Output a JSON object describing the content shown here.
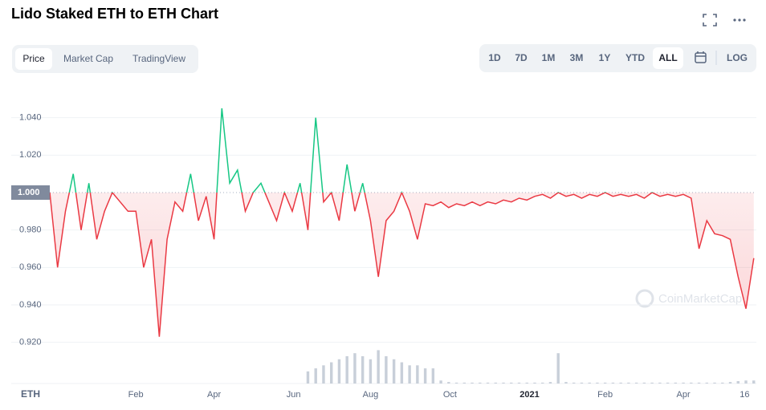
{
  "header": {
    "title": "Lido Staked ETH to ETH Chart"
  },
  "tabs": [
    "Price",
    "Market Cap",
    "TradingView"
  ],
  "active_tab": 0,
  "ranges": [
    "1D",
    "7D",
    "1M",
    "3M",
    "1Y",
    "YTD",
    "ALL"
  ],
  "active_range": 6,
  "log_button": "LOG",
  "watermark": "CoinMarketCap",
  "chart_data": {
    "type": "line",
    "axis_label": "ETH",
    "x": [
      0,
      6,
      12,
      18,
      24,
      30,
      36,
      42,
      48,
      54,
      60,
      66,
      72,
      78,
      84,
      90,
      96,
      102,
      108,
      114,
      120,
      126,
      132,
      138,
      144,
      150,
      156,
      162,
      168,
      174,
      180,
      186,
      192,
      198,
      204,
      210,
      216,
      222,
      228,
      234,
      240,
      246,
      252,
      258,
      264,
      270,
      276,
      282,
      288,
      294,
      300,
      306,
      312,
      318,
      324,
      330,
      336,
      342,
      348,
      354,
      360,
      366,
      372,
      378,
      384,
      390,
      396,
      402,
      408,
      414,
      420,
      426,
      432,
      438,
      444,
      450,
      456,
      462,
      468,
      474,
      480,
      486,
      492,
      498,
      504,
      510,
      516,
      522,
      528,
      534,
      540
    ],
    "xlim": [
      0,
      542
    ],
    "xticks": [
      {
        "value": 66,
        "label": "Feb"
      },
      {
        "value": 126,
        "label": "Apr"
      },
      {
        "value": 187,
        "label": "Jun"
      },
      {
        "value": 246,
        "label": "Aug"
      },
      {
        "value": 307,
        "label": "Oct"
      },
      {
        "value": 368,
        "label": "2021"
      },
      {
        "value": 426,
        "label": "Feb"
      },
      {
        "value": 486,
        "label": "Apr"
      },
      {
        "value": 533,
        "label": "16"
      }
    ],
    "ylim": [
      0.898,
      1.06
    ],
    "yticks": [
      {
        "value": 0.92,
        "label": "0.920"
      },
      {
        "value": 0.94,
        "label": "0.940"
      },
      {
        "value": 0.96,
        "label": "0.960"
      },
      {
        "value": 0.98,
        "label": "0.980"
      },
      {
        "value": 1.02,
        "label": "1.020"
      },
      {
        "value": 1.04,
        "label": "1.040"
      }
    ],
    "baseline": {
      "value": 1,
      "label": "1.000"
    },
    "y2lim": [
      0,
      100
    ],
    "grid": true,
    "series": [
      {
        "color": "#ea3943",
        "color_above_baseline": "#16c784",
        "values": [
          1.0,
          0.96,
          0.99,
          1.01,
          0.98,
          1.005,
          0.975,
          0.99,
          1.0,
          0.995,
          0.99,
          0.99,
          0.96,
          0.975,
          0.923,
          0.975,
          0.995,
          0.99,
          1.01,
          0.985,
          0.998,
          0.975,
          1.045,
          1.005,
          1.012,
          0.99,
          1.0,
          1.005,
          0.995,
          0.985,
          1.0,
          0.99,
          1.005,
          0.98,
          1.04,
          0.995,
          1.0,
          0.985,
          1.015,
          0.99,
          1.005,
          0.985,
          0.955,
          0.985,
          0.99,
          1.0,
          0.99,
          0.975,
          0.994,
          0.993,
          0.995,
          0.992,
          0.994,
          0.993,
          0.995,
          0.993,
          0.995,
          0.994,
          0.996,
          0.995,
          0.997,
          0.996,
          0.998,
          0.999,
          0.997,
          1.0,
          0.998,
          0.999,
          0.997,
          0.999,
          0.998,
          1.0,
          0.998,
          0.999,
          0.998,
          0.999,
          0.997,
          1.0,
          0.998,
          0.999,
          0.998,
          0.999,
          0.997,
          0.97,
          0.985,
          0.978,
          0.977,
          0.975,
          0.955,
          0.938,
          0.965
        ]
      },
      {
        "type": "bar",
        "axis": "y2",
        "color": "#c8cfd9",
        "values": [
          0,
          0,
          0,
          0,
          0,
          0,
          0,
          0,
          0,
          0,
          0,
          0,
          0,
          0,
          0,
          0,
          0,
          0,
          0,
          0,
          0,
          0,
          0,
          0,
          0,
          0,
          0,
          0,
          0,
          0,
          0,
          0,
          0,
          4,
          5,
          6,
          7,
          8,
          9,
          10,
          9,
          8,
          11,
          9,
          8,
          7,
          6,
          6,
          5,
          5,
          1,
          0.5,
          0.3,
          0.3,
          0.3,
          0.3,
          0.3,
          0.3,
          0.3,
          0.3,
          0.3,
          0.3,
          0.3,
          0.3,
          0.5,
          10,
          0.5,
          0.3,
          0.3,
          0.3,
          0.3,
          0.3,
          0.3,
          0.3,
          0.3,
          0.3,
          0.3,
          0.3,
          0.3,
          0.3,
          0.3,
          0.3,
          0.3,
          0.3,
          0.3,
          0.3,
          0.3,
          0.5,
          0.8,
          1,
          1
        ]
      }
    ]
  }
}
